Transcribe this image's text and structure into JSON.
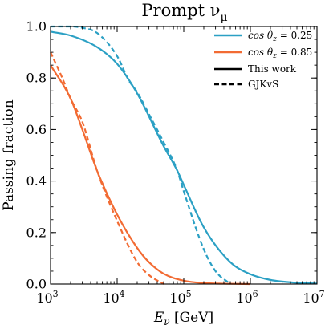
{
  "chart_data": {
    "type": "line",
    "title": "Prompt ν",
    "title_sub": "μ",
    "xlabel": "E",
    "xlabel_sub": "ν",
    "xlabel_unit": " [GeV]",
    "ylabel": "Passing fraction",
    "xscale": "log",
    "xlim": [
      1000,
      10000000
    ],
    "ylim": [
      0.0,
      1.0
    ],
    "x_ticks": [
      {
        "value": 1000,
        "base": "10",
        "exp": "3"
      },
      {
        "value": 10000,
        "base": "10",
        "exp": "4"
      },
      {
        "value": 100000,
        "base": "10",
        "exp": "5"
      },
      {
        "value": 1000000,
        "base": "10",
        "exp": "6"
      },
      {
        "value": 10000000,
        "base": "10",
        "exp": "7"
      }
    ],
    "y_ticks": [
      "0.0",
      "0.2",
      "0.4",
      "0.6",
      "0.8",
      "1.0"
    ],
    "grid": false,
    "legend_position": "top-right",
    "legend": [
      {
        "label": "cos θ",
        "sub": "z",
        "value": " = 0.25",
        "color": "#2ba0c4",
        "style": "solid"
      },
      {
        "label": "cos θ",
        "sub": "z",
        "value": " = 0.85",
        "color": "#f26b33",
        "style": "solid"
      },
      {
        "label": "This work",
        "color": "#000000",
        "style": "solid"
      },
      {
        "label": "GJKvS",
        "color": "#000000",
        "style": "dashed"
      }
    ],
    "series": [
      {
        "color": "#2ba0c4",
        "style": "solid",
        "x": [
          1000,
          2000,
          5000,
          10000,
          20000,
          50000,
          80000,
          100000,
          200000,
          500000,
          1000000,
          2000000,
          5000000,
          10000000
        ],
        "y": [
          0.98,
          0.965,
          0.92,
          0.855,
          0.74,
          0.535,
          0.44,
          0.385,
          0.22,
          0.085,
          0.038,
          0.016,
          0.005,
          0.002
        ]
      },
      {
        "color": "#2ba0c4",
        "style": "dashed",
        "x": [
          1000,
          2000,
          3000,
          5000,
          10000,
          15000,
          20000,
          30000,
          50000,
          80000,
          100000,
          200000,
          300000,
          500000
        ],
        "y": [
          1.0,
          1.0,
          0.995,
          0.975,
          0.885,
          0.79,
          0.745,
          0.66,
          0.55,
          0.44,
          0.36,
          0.135,
          0.05,
          0.0
        ]
      },
      {
        "color": "#f26b33",
        "style": "solid",
        "x": [
          1000,
          2000,
          3000,
          5000,
          10000,
          20000,
          30000,
          50000,
          100000,
          200000,
          500000,
          1000000
        ],
        "y": [
          0.85,
          0.72,
          0.6,
          0.44,
          0.27,
          0.14,
          0.085,
          0.04,
          0.013,
          0.004,
          0.001,
          0.0
        ]
      },
      {
        "color": "#f26b33",
        "style": "dashed",
        "x": [
          1000,
          1500,
          2000,
          3000,
          5000,
          10000,
          20000,
          30000,
          50000
        ],
        "y": [
          0.9,
          0.8,
          0.72,
          0.63,
          0.44,
          0.245,
          0.085,
          0.035,
          0.0
        ]
      }
    ]
  }
}
